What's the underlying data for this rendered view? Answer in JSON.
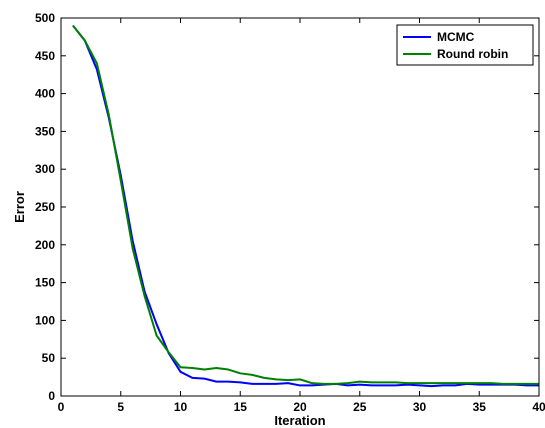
{
  "chart_data": {
    "type": "line",
    "title": "",
    "xlabel": "Iteration",
    "ylabel": "Error",
    "xlim": [
      0,
      40
    ],
    "ylim": [
      0,
      500
    ],
    "xticks": [
      0,
      5,
      10,
      15,
      20,
      25,
      30,
      35,
      40
    ],
    "yticks": [
      0,
      50,
      100,
      150,
      200,
      250,
      300,
      350,
      400,
      450,
      500
    ],
    "grid": false,
    "legend_position": "top-right",
    "x": [
      1,
      2,
      3,
      4,
      5,
      6,
      7,
      8,
      9,
      10,
      11,
      12,
      13,
      14,
      15,
      16,
      17,
      18,
      19,
      20,
      21,
      22,
      23,
      24,
      25,
      26,
      27,
      28,
      29,
      30,
      31,
      32,
      33,
      34,
      35,
      36,
      37,
      38,
      39,
      40
    ],
    "series": [
      {
        "name": "MCMC",
        "color": "#0000ff",
        "values": [
          490,
          470,
          432,
          368,
          292,
          205,
          138,
          95,
          57,
          32,
          24,
          23,
          19,
          19,
          18,
          16,
          16,
          16,
          17,
          14,
          14,
          15,
          16,
          14,
          15,
          14,
          14,
          14,
          15,
          14,
          13,
          14,
          14,
          16,
          15,
          15,
          15,
          15,
          14,
          14
        ]
      },
      {
        "name": "Round robin",
        "color": "#008000",
        "values": [
          490,
          470,
          440,
          372,
          285,
          195,
          132,
          80,
          58,
          38,
          37,
          35,
          37,
          35,
          30,
          28,
          24,
          22,
          21,
          22,
          17,
          16,
          16,
          17,
          19,
          18,
          18,
          18,
          17,
          17,
          17,
          17,
          17,
          17,
          17,
          17,
          16,
          16,
          16,
          16
        ]
      }
    ]
  }
}
